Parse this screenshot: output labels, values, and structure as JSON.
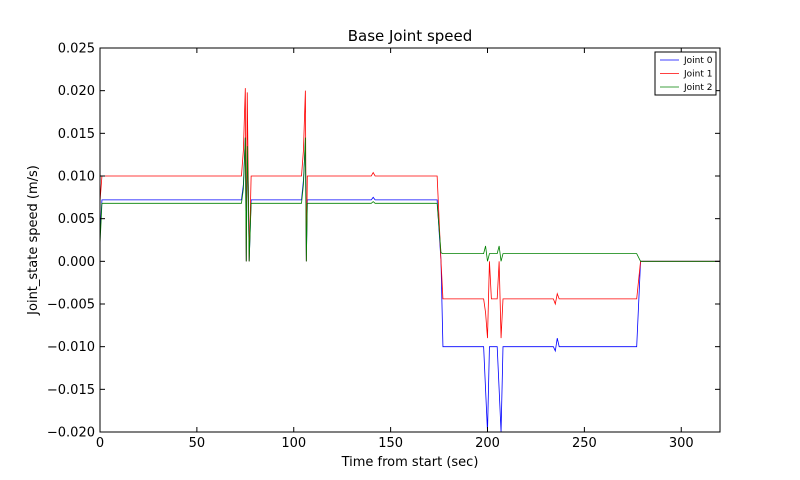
{
  "chart_data": {
    "type": "line",
    "title": "Base Joint speed",
    "xlabel": "Time from start (sec)",
    "ylabel": "Joint_state speed (m/s)",
    "xlim": [
      0,
      320
    ],
    "ylim": [
      -0.02,
      0.025
    ],
    "x_ticks": [
      0,
      50,
      100,
      150,
      200,
      250,
      300
    ],
    "x_tick_labels": [
      "0",
      "50",
      "100",
      "150",
      "200",
      "250",
      "300"
    ],
    "y_ticks": [
      -0.02,
      -0.015,
      -0.01,
      -0.005,
      0.0,
      0.005,
      0.01,
      0.015,
      0.02,
      0.025
    ],
    "y_tick_labels": [
      "−0.020",
      "−0.015",
      "−0.010",
      "−0.005",
      "0.000",
      "0.005",
      "0.010",
      "0.015",
      "0.020",
      "0.025"
    ],
    "grid": false,
    "legend_position": "top-right",
    "series": [
      {
        "name": "Joint 0",
        "color": "#0000ff",
        "points": [
          [
            0,
            0.003
          ],
          [
            1,
            0.0072
          ],
          [
            20,
            0.0072
          ],
          [
            50,
            0.0072
          ],
          [
            73,
            0.0072
          ],
          [
            74,
            0.009
          ],
          [
            75,
            0.0145
          ],
          [
            75.5,
            0.0
          ],
          [
            76,
            0.013
          ],
          [
            76.5,
            0.009
          ],
          [
            77,
            0.0
          ],
          [
            78,
            0.0072
          ],
          [
            104,
            0.0072
          ],
          [
            105,
            0.0095
          ],
          [
            106,
            0.014
          ],
          [
            106.5,
            0.0
          ],
          [
            107,
            0.0072
          ],
          [
            140,
            0.0072
          ],
          [
            141,
            0.0075
          ],
          [
            142,
            0.0072
          ],
          [
            174,
            0.0072
          ],
          [
            176,
            0.0
          ],
          [
            177,
            -0.01
          ],
          [
            198,
            -0.01
          ],
          [
            199,
            -0.015
          ],
          [
            200,
            -0.02
          ],
          [
            201,
            -0.01
          ],
          [
            205,
            -0.01
          ],
          [
            206,
            -0.015
          ],
          [
            207,
            -0.02
          ],
          [
            208,
            -0.01
          ],
          [
            234,
            -0.01
          ],
          [
            235,
            -0.0105
          ],
          [
            236,
            -0.009
          ],
          [
            237,
            -0.01
          ],
          [
            277,
            -0.01
          ],
          [
            279,
            0.0
          ],
          [
            320,
            0.0
          ]
        ]
      },
      {
        "name": "Joint 1",
        "color": "#ff0000",
        "points": [
          [
            0,
            0.007
          ],
          [
            1,
            0.01
          ],
          [
            20,
            0.01
          ],
          [
            50,
            0.01
          ],
          [
            73,
            0.01
          ],
          [
            74,
            0.013
          ],
          [
            75,
            0.0203
          ],
          [
            75.5,
            0.0
          ],
          [
            76,
            0.0198
          ],
          [
            76.5,
            0.01
          ],
          [
            77,
            0.0
          ],
          [
            78,
            0.01
          ],
          [
            104,
            0.01
          ],
          [
            105,
            0.013
          ],
          [
            106,
            0.02
          ],
          [
            106.5,
            0.0
          ],
          [
            107,
            0.01
          ],
          [
            140,
            0.01
          ],
          [
            141,
            0.0104
          ],
          [
            142,
            0.01
          ],
          [
            174,
            0.01
          ],
          [
            176,
            0.0
          ],
          [
            177,
            -0.0044
          ],
          [
            198,
            -0.0044
          ],
          [
            199,
            -0.006
          ],
          [
            200,
            -0.009
          ],
          [
            201,
            0.0
          ],
          [
            202,
            -0.0044
          ],
          [
            205,
            -0.0044
          ],
          [
            206,
            0.0
          ],
          [
            207,
            -0.009
          ],
          [
            208,
            -0.0044
          ],
          [
            234,
            -0.0044
          ],
          [
            235,
            -0.005
          ],
          [
            236,
            -0.0038
          ],
          [
            237,
            -0.0044
          ],
          [
            277,
            -0.0044
          ],
          [
            279,
            0.0
          ],
          [
            320,
            0.0
          ]
        ]
      },
      {
        "name": "Joint 2",
        "color": "#008000",
        "points": [
          [
            0,
            0.002
          ],
          [
            1,
            0.0068
          ],
          [
            20,
            0.0068
          ],
          [
            50,
            0.0068
          ],
          [
            73,
            0.0068
          ],
          [
            74,
            0.0085
          ],
          [
            75,
            0.0145
          ],
          [
            75.5,
            0.0
          ],
          [
            76,
            0.0135
          ],
          [
            76.5,
            0.0085
          ],
          [
            77,
            0.0
          ],
          [
            78,
            0.0068
          ],
          [
            104,
            0.0068
          ],
          [
            105,
            0.009
          ],
          [
            106,
            0.0145
          ],
          [
            106.5,
            0.0
          ],
          [
            107,
            0.0068
          ],
          [
            140,
            0.0068
          ],
          [
            141,
            0.007
          ],
          [
            142,
            0.0068
          ],
          [
            174,
            0.0068
          ],
          [
            176,
            0.001
          ],
          [
            177,
            0.0009
          ],
          [
            198,
            0.0009
          ],
          [
            199,
            0.0018
          ],
          [
            200,
            0.0
          ],
          [
            201,
            0.0009
          ],
          [
            205,
            0.0009
          ],
          [
            206,
            0.0018
          ],
          [
            207,
            0.0
          ],
          [
            208,
            0.0009
          ],
          [
            234,
            0.0009
          ],
          [
            277,
            0.0009
          ],
          [
            279,
            0.0
          ],
          [
            320,
            0.0
          ]
        ]
      }
    ]
  }
}
